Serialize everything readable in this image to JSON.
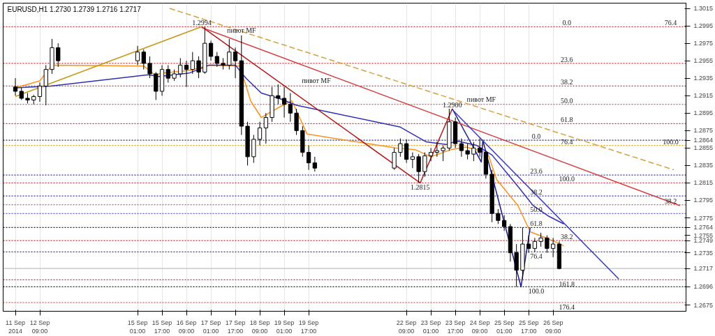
{
  "chart_data": {
    "type": "candlestick",
    "title": "EURUSD,H1  1.2730 1.2739 1.2716 1.2717",
    "x": [
      "2014-09-11T17:00",
      "2014-09-11T21:00",
      "2014-09-12T01:00",
      "2014-09-12T05:00",
      "2014-09-12T09:00",
      "2014-09-12T13:00",
      "2014-09-12T17:00",
      "2014-09-12T21:00",
      "2014-09-15T01:00",
      "2014-09-15T05:00",
      "2014-09-15T09:00",
      "2014-09-15T13:00",
      "2014-09-15T17:00",
      "2014-09-15T21:00",
      "2014-09-16T01:00",
      "2014-09-16T05:00",
      "2014-09-16T09:00",
      "2014-09-16T13:00",
      "2014-09-16T17:00",
      "2014-09-16T21:00",
      "2014-09-17T01:00",
      "2014-09-17T05:00",
      "2014-09-17T09:00",
      "2014-09-17T13:00",
      "2014-09-17T17:00",
      "2014-09-17T21:00",
      "2014-09-18T01:00",
      "2014-09-18T05:00",
      "2014-09-18T09:00",
      "2014-09-18T13:00",
      "2014-09-18T17:00",
      "2014-09-18T21:00",
      "2014-09-19T01:00",
      "2014-09-19T05:00",
      "2014-09-19T09:00",
      "2014-09-19T13:00",
      "2014-09-19T17:00",
      "2014-09-19T21:00",
      "2014-09-22T01:00",
      "2014-09-22T05:00",
      "2014-09-22T09:00",
      "2014-09-22T13:00",
      "2014-09-22T17:00",
      "2014-09-22T21:00",
      "2014-09-23T01:00",
      "2014-09-23T05:00",
      "2014-09-23T09:00",
      "2014-09-23T13:00",
      "2014-09-23T17:00",
      "2014-09-23T21:00",
      "2014-09-24T01:00",
      "2014-09-24T05:00",
      "2014-09-24T09:00",
      "2014-09-24T13:00",
      "2014-09-24T17:00",
      "2014-09-24T21:00",
      "2014-09-25T01:00",
      "2014-09-25T05:00",
      "2014-09-25T09:00",
      "2014-09-25T13:00",
      "2014-09-25T17:00",
      "2014-09-25T21:00",
      "2014-09-26T01:00",
      "2014-09-26T05:00",
      "2014-09-26T09:00",
      "2014-09-26T13:00"
    ],
    "ohlc": [
      [
        1.2925,
        1.2935,
        1.2915,
        1.292
      ],
      [
        1.292,
        1.2924,
        1.291,
        1.2912
      ],
      [
        1.2912,
        1.2918,
        1.2906,
        1.291
      ],
      [
        1.291,
        1.2916,
        1.2905,
        1.2914
      ],
      [
        1.2914,
        1.293,
        1.2908,
        1.2926
      ],
      [
        1.2926,
        1.295,
        1.2904,
        1.2945
      ],
      [
        1.2945,
        1.298,
        1.294,
        1.297
      ],
      [
        1.297,
        1.2975,
        1.2948,
        1.2955
      ],
      [
        1.2955,
        1.2972,
        1.295,
        1.2965
      ],
      [
        1.2965,
        1.2968,
        1.2945,
        1.2952
      ],
      [
        1.2952,
        1.296,
        1.2935,
        1.294
      ],
      [
        1.294,
        1.2942,
        1.291,
        1.292
      ],
      [
        1.292,
        1.295,
        1.2915,
        1.2945
      ],
      [
        1.2945,
        1.295,
        1.293,
        1.2935
      ],
      [
        1.2935,
        1.2945,
        1.2932,
        1.294
      ],
      [
        1.294,
        1.2958,
        1.2936,
        1.295
      ],
      [
        1.295,
        1.2955,
        1.2925,
        1.2945
      ],
      [
        1.2945,
        1.2965,
        1.294,
        1.2955
      ],
      [
        1.2955,
        1.296,
        1.2935,
        1.2942
      ],
      [
        1.2942,
        1.2994,
        1.294,
        1.2975
      ],
      [
        1.2975,
        1.2978,
        1.2955,
        1.296
      ],
      [
        1.296,
        1.2965,
        1.2948,
        1.2952
      ],
      [
        1.2952,
        1.2958,
        1.2945,
        1.295
      ],
      [
        1.295,
        1.298,
        1.2945,
        1.2965
      ],
      [
        1.2965,
        1.297,
        1.2935,
        1.2955
      ],
      [
        1.2955,
        1.2984,
        1.287,
        1.288
      ],
      [
        1.288,
        1.2885,
        1.2835,
        1.2845
      ],
      [
        1.2845,
        1.287,
        1.2838,
        1.2865
      ],
      [
        1.2865,
        1.2885,
        1.2858,
        1.2878
      ],
      [
        1.2878,
        1.2895,
        1.286,
        1.289
      ],
      [
        1.289,
        1.2925,
        1.2885,
        1.2915
      ],
      [
        1.2915,
        1.2928,
        1.2905,
        1.2912
      ],
      [
        1.2912,
        1.2925,
        1.289,
        1.2905
      ],
      [
        1.2905,
        1.2918,
        1.2885,
        1.2895
      ],
      [
        1.2895,
        1.29,
        1.287,
        1.2875
      ],
      [
        1.2875,
        1.288,
        1.2845,
        1.285
      ],
      [
        1.285,
        1.2858,
        1.283,
        1.2838
      ],
      [
        1.2838,
        1.2845,
        1.2828,
        1.2832
      ],
      [
        1.2832,
        1.2855,
        1.283,
        1.285
      ],
      [
        1.285,
        1.2866,
        1.2845,
        1.286
      ],
      [
        1.286,
        1.2865,
        1.2838,
        1.2842
      ],
      [
        1.2842,
        1.285,
        1.2832,
        1.2845
      ],
      [
        1.2845,
        1.2848,
        1.2815,
        1.2828
      ],
      [
        1.2828,
        1.285,
        1.2822,
        1.2846
      ],
      [
        1.2846,
        1.2855,
        1.284,
        1.285
      ],
      [
        1.285,
        1.2862,
        1.2845,
        1.2852
      ],
      [
        1.2852,
        1.2858,
        1.284,
        1.2855
      ],
      [
        1.2855,
        1.29,
        1.2852,
        1.2885
      ],
      [
        1.2885,
        1.289,
        1.2855,
        1.286
      ],
      [
        1.286,
        1.2866,
        1.2845,
        1.2852
      ],
      [
        1.2852,
        1.286,
        1.2842,
        1.2848
      ],
      [
        1.2848,
        1.2862,
        1.284,
        1.2855
      ],
      [
        1.2855,
        1.2866,
        1.2845,
        1.285
      ],
      [
        1.285,
        1.2852,
        1.282,
        1.2825
      ],
      [
        1.2825,
        1.283,
        1.277,
        1.278
      ],
      [
        1.278,
        1.2785,
        1.2768,
        1.2772
      ],
      [
        1.2772,
        1.2778,
        1.276,
        1.2765
      ],
      [
        1.2765,
        1.2768,
        1.2725,
        1.2735
      ],
      [
        1.2735,
        1.2745,
        1.2696,
        1.2715
      ],
      [
        1.2715,
        1.2764,
        1.2705,
        1.2745
      ],
      [
        1.2745,
        1.2755,
        1.2735,
        1.274
      ],
      [
        1.274,
        1.2752,
        1.2736,
        1.2748
      ],
      [
        1.2748,
        1.2758,
        1.2742,
        1.2752
      ],
      [
        1.2752,
        1.2755,
        1.2735,
        1.274
      ],
      [
        1.274,
        1.2752,
        1.273,
        1.2745
      ],
      [
        1.2745,
        1.2748,
        1.2716,
        1.2717
      ]
    ],
    "color": "#000000",
    "series": [
      {
        "type": "line",
        "color": "#f7931e",
        "x": [
          "2014-09-11T17:00",
          "2014-09-12T09:00",
          "2014-09-12T17:00",
          "2014-09-15T05:00",
          "2014-09-15T12:00",
          "2014-09-15T18:00",
          "2014-09-16T11:00",
          "2014-09-17T00:00",
          "2014-09-17T20:00",
          "2014-09-18T03:00",
          "2014-09-18T10:00",
          "2014-09-18T16:00",
          "2014-09-18T23:00",
          "2014-09-19T06:00",
          "2014-09-19T16:00",
          "2014-09-22T02:00",
          "2014-09-22T15:00",
          "2014-09-23T01:00",
          "2014-09-23T14:00",
          "2014-09-24T00:00",
          "2014-09-24T14:00",
          "2014-09-24T20:00",
          "2014-09-25T10:00",
          "2014-09-25T18:00",
          "2014-09-26T06:00",
          "2014-09-26T16:00"
        ],
        "values": [
          1.2924,
          1.2932,
          1.295,
          1.2949,
          1.2939,
          1.2941,
          1.2944,
          1.295,
          1.2949,
          1.2909,
          1.289,
          1.2896,
          1.2903,
          1.2909,
          1.2871,
          1.2855,
          1.2853,
          1.2845,
          1.2853,
          1.2856,
          1.285,
          1.2819,
          1.2789,
          1.2759,
          1.2751,
          1.2743
        ]
      },
      {
        "type": "line",
        "color": "#3030b0",
        "x": [
          "2014-09-11T17:00",
          "2014-09-12T16:00",
          "2014-09-15T08:00",
          "2014-09-15T15:00",
          "2014-09-16T11:00",
          "2014-09-17T00:00",
          "2014-09-17T17:00",
          "2014-09-18T00:00",
          "2014-09-18T10:00",
          "2014-09-18T23:00",
          "2014-09-19T09:00",
          "2014-09-22T05:00",
          "2014-09-22T22:00",
          "2014-09-23T11:00",
          "2014-09-23T18:00",
          "2014-09-24T07:00",
          "2014-09-24T17:00",
          "2014-09-25T10:00",
          "2014-09-25T20:00",
          "2014-09-26T06:00",
          "2014-09-26T16:00"
        ],
        "values": [
          1.2924,
          1.2926,
          1.2939,
          1.2937,
          1.2941,
          1.295,
          1.295,
          1.2935,
          1.2918,
          1.2911,
          1.2904,
          1.2879,
          1.2862,
          1.2859,
          1.2863,
          1.2858,
          1.2847,
          1.2811,
          1.2789,
          1.2777,
          1.2768
        ]
      },
      {
        "type": "line",
        "color": "#c8961e",
        "x": [
          "2014-09-11T17:00",
          "2014-09-16T19:00"
        ],
        "values": [
          1.2914,
          1.2994
        ]
      },
      {
        "type": "line",
        "color": "#b01818",
        "x": [
          "2014-09-16T19:00",
          "2014-09-22T18:00",
          "2014-09-23T15:00"
        ],
        "values": [
          1.2994,
          1.2815,
          1.29
        ]
      },
      {
        "type": "line",
        "color": "#1a1a8c",
        "x": [
          "2014-09-23T15:00",
          "2014-09-24T10:00",
          "2014-09-24T11:00",
          "2014-09-25T12:00",
          "2014-09-25T18:00"
        ],
        "values": [
          1.29,
          1.2839,
          1.2864,
          1.2696,
          1.2764
        ]
      },
      {
        "type": "line",
        "color": "#d04040",
        "x": [
          "2014-09-16T19:00",
          "2014-09-29T20:00"
        ],
        "values": [
          1.2993,
          1.2789
        ]
      },
      {
        "type": "line",
        "color": "#d4a040",
        "line_style": "dashed",
        "x": [
          "2014-09-15T22:00",
          "2014-09-29T16:00"
        ],
        "values": [
          1.3015,
          1.283
        ]
      },
      {
        "type": "line",
        "color": "#3a3ac0",
        "x": [
          "2014-09-23T15:00",
          "2014-09-28T04:00"
        ],
        "values": [
          1.2899,
          1.2705
        ]
      }
    ],
    "ref_lines": [
      {
        "axis": "y",
        "value": 1.2994,
        "color": "#d03030",
        "line_style": "dotted"
      },
      {
        "axis": "y",
        "value": 1.2952,
        "color": "#d03030",
        "line_style": "dotted"
      },
      {
        "axis": "y",
        "value": 1.2926,
        "color": "#d03030",
        "line_style": "dotted"
      },
      {
        "axis": "y",
        "value": 1.2905,
        "color": "#d03030",
        "line_style": "dotted"
      },
      {
        "axis": "y",
        "value": 1.2883,
        "color": "#d03030",
        "line_style": "dotted"
      },
      {
        "axis": "y",
        "value": 1.2864,
        "color": "#202080",
        "line_style": "dotted"
      },
      {
        "axis": "y",
        "value": 1.2858,
        "color": "#e0a020",
        "line_style": "dotted"
      },
      {
        "axis": "y",
        "value": 1.2824,
        "color": "#3030c0",
        "line_style": "dotted"
      },
      {
        "axis": "y",
        "value": 1.2815,
        "color": "#d03030",
        "line_style": "dotted"
      },
      {
        "axis": "y",
        "value": 1.28,
        "color": "#3030c0",
        "line_style": "dotted"
      },
      {
        "axis": "y",
        "value": 1.279,
        "color": "#e02020",
        "line_style": "dotted"
      },
      {
        "axis": "y",
        "value": 1.278,
        "color": "#3030c0",
        "line_style": "dotted"
      },
      {
        "axis": "y",
        "value": 1.2764,
        "color": "#202020",
        "line_style": "dotted"
      },
      {
        "axis": "y",
        "value": 1.2749,
        "color": "#e02020",
        "line_style": "dotted"
      },
      {
        "axis": "y",
        "value": 1.2736,
        "color": "#3030c0",
        "line_style": "dotted"
      },
      {
        "axis": "y",
        "value": 1.2717,
        "color": "#c0c0c0",
        "line_style": "solid"
      },
      {
        "axis": "y",
        "value": 1.2704,
        "color": "#d03030",
        "line_style": "dotted"
      },
      {
        "axis": "y",
        "value": 1.2696,
        "color": "#202020",
        "line_style": "dotted"
      },
      {
        "axis": "y",
        "value": 1.2678,
        "color": "#d03030",
        "line_style": "dotted"
      }
    ],
    "annotations": [
      {
        "text": "1.2994",
        "x": "2014-09-16T19:00",
        "y": 1.2994
      },
      {
        "text": "1.2815",
        "x": "2014-09-22T18:00",
        "y": 1.2815
      },
      {
        "text": "1.2900",
        "x": "2014-09-23T15:00",
        "y": 1.29
      },
      {
        "text": "пивот MF",
        "x": "2014-09-17T21:00",
        "y": 1.2984
      },
      {
        "text": "пивот MF",
        "x": "2014-09-19T22:00",
        "y": 1.2926
      },
      {
        "text": "пивот MF",
        "x": "2014-09-24T10:00",
        "y": 1.2905
      },
      {
        "text": "0.0",
        "x": "2014-09-26T18:00",
        "y": 1.2994
      },
      {
        "text": "23.6",
        "x": "2014-09-26T18:00",
        "y": 1.2952
      },
      {
        "text": "38.2",
        "x": "2014-09-26T18:00",
        "y": 1.2926
      },
      {
        "text": "50.0",
        "x": "2014-09-26T18:00",
        "y": 1.2905
      },
      {
        "text": "61.8",
        "x": "2014-09-26T18:00",
        "y": 1.2883
      },
      {
        "text": "76.4",
        "x": "2014-09-26T18:00",
        "y": 1.2858
      },
      {
        "text": "100.0",
        "x": "2014-09-26T18:00",
        "y": 1.2815
      },
      {
        "text": "38.2",
        "x": "2014-09-26T18:00",
        "y": 1.2749
      },
      {
        "text": "161.8",
        "x": "2014-09-26T18:00",
        "y": 1.2704
      },
      {
        "text": "176.4",
        "x": "2014-09-26T18:00",
        "y": 1.2678
      },
      {
        "text": "76.4",
        "x": "2014-09-29T14:00",
        "y": 1.2994
      },
      {
        "text": "100.0",
        "x": "2014-09-29T14:00",
        "y": 1.2858
      },
      {
        "text": "38.2",
        "x": "2014-09-29T14:00",
        "y": 1.279
      },
      {
        "text": "0.0",
        "x": "2014-09-25T22:00",
        "y": 1.2864
      },
      {
        "text": "23.6",
        "x": "2014-09-25T22:00",
        "y": 1.2824
      },
      {
        "text": "38.2",
        "x": "2014-09-25T22:00",
        "y": 1.28
      },
      {
        "text": "50.0",
        "x": "2014-09-25T22:00",
        "y": 1.278
      },
      {
        "text": "61.8",
        "x": "2014-09-25T22:00",
        "y": 1.2764
      },
      {
        "text": "76.4",
        "x": "2014-09-25T22:00",
        "y": 1.2736
      },
      {
        "text": "100.0",
        "x": "2014-09-25T22:00",
        "y": 1.2696
      }
    ],
    "xlim": [
      "2014-09-11T09:00",
      "2014-09-30T00:00"
    ],
    "xticks": [
      {
        "value": "2014-09-11T17:00",
        "label": "11 Sep 2014"
      },
      {
        "value": "2014-09-12T09:00",
        "label": "12 Sep 09:00"
      },
      {
        "value": "2014-09-15T01:00",
        "label": "15 Sep 01:00"
      },
      {
        "value": "2014-09-15T17:00",
        "label": "15 Sep 17:00"
      },
      {
        "value": "2014-09-16T09:00",
        "label": "16 Sep 09:00"
      },
      {
        "value": "2014-09-17T01:00",
        "label": "17 Sep 01:00"
      },
      {
        "value": "2014-09-17T17:00",
        "label": "17 Sep 17:00"
      },
      {
        "value": "2014-09-18T09:00",
        "label": "18 Sep 09:00"
      },
      {
        "value": "2014-09-19T01:00",
        "label": "19 Sep 01:00"
      },
      {
        "value": "2014-09-19T17:00",
        "label": "19 Sep 17:00"
      },
      {
        "value": "2014-09-22T09:00",
        "label": "22 Sep 09:00"
      },
      {
        "value": "2014-09-23T01:00",
        "label": "23 Sep 01:00"
      },
      {
        "value": "2014-09-23T17:00",
        "label": "23 Sep 17:00"
      },
      {
        "value": "2014-09-24T09:00",
        "label": "24 Sep 09:00"
      },
      {
        "value": "2014-09-25T01:00",
        "label": "25 Sep 01:00"
      },
      {
        "value": "2014-09-25T17:00",
        "label": "25 Sep 17:00"
      },
      {
        "value": "2014-09-26T09:00",
        "label": "26 Sep 09:00"
      }
    ],
    "ylim": [
      1.2668,
      1.3021
    ],
    "yticks": [
      1.3015,
      1.2995,
      1.2975,
      1.2955,
      1.2935,
      1.2915,
      1.2895,
      1.2875,
      1.2864,
      1.2855,
      1.2835,
      1.2815,
      1.2795,
      1.2775,
      1.2764,
      1.2755,
      1.2749,
      1.2735,
      1.2717,
      1.2696,
      1.2675
    ],
    "grid": "x"
  }
}
